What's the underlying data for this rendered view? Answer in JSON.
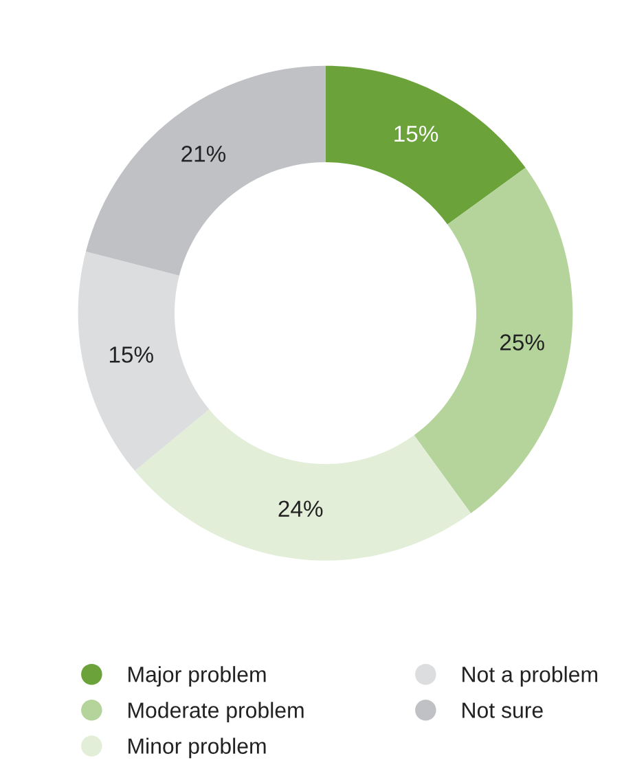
{
  "chart_data": {
    "type": "donut",
    "categories": [
      "Major problem",
      "Moderate problem",
      "Minor problem",
      "Not a problem",
      "Not sure"
    ],
    "values": [
      15,
      25,
      24,
      15,
      21
    ],
    "value_labels": [
      "15%",
      "25%",
      "24%",
      "15%",
      "21%"
    ],
    "colors": [
      "#6ba33a",
      "#b4d49c",
      "#e2eed7",
      "#dcdddf",
      "#bfc1c4"
    ],
    "legend": "bottom"
  }
}
